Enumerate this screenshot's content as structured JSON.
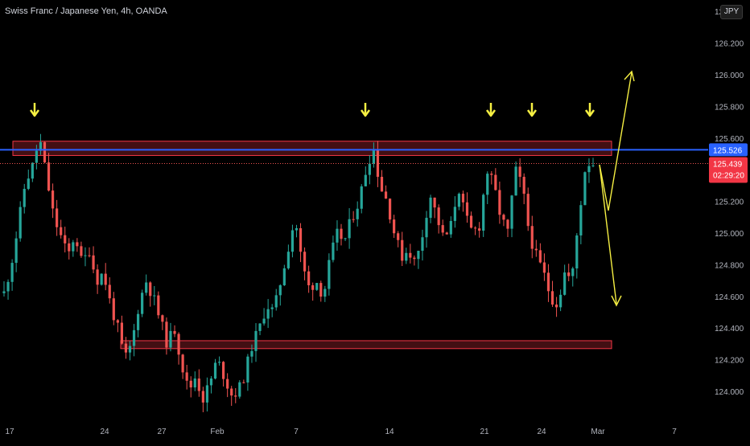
{
  "header": {
    "title": "Swiss Franc / Japanese Yen, 4h, OANDA",
    "currency_button": "JPY",
    "top_price_label": "12"
  },
  "colors": {
    "up": "#26a69a",
    "down": "#ef5350",
    "resistance_line": "#2962ff",
    "zone_border": "#f23645",
    "arrow": "#f5ef42",
    "current_price_bg": "#f23645"
  },
  "chart_data": {
    "type": "candlestick",
    "ylim": [
      123.85,
      126.42
    ],
    "y_ticks": [
      "126.200",
      "126.000",
      "125.800",
      "125.600",
      "125.200",
      "125.000",
      "124.800",
      "124.600",
      "124.400",
      "124.200",
      "124.000"
    ],
    "x_tick_labels": [
      "17",
      "24",
      "27",
      "Feb",
      "7",
      "14",
      "21",
      "24",
      "Mar",
      "7"
    ],
    "resistance_level": "125.526",
    "current_price": "125.439",
    "countdown": "02:29:20",
    "resistance_zone": [
      125.49,
      125.58
    ],
    "support_zone": [
      124.27,
      124.32
    ],
    "down_arrow_markers": 5,
    "projection_paths": [
      "up-breakout",
      "down-reversal"
    ],
    "price_path": [
      124.62,
      124.8,
      125.05,
      125.32,
      125.42,
      125.6,
      125.35,
      125.1,
      124.98,
      124.85,
      125.0,
      124.8,
      124.9,
      124.7,
      124.75,
      124.55,
      124.4,
      124.2,
      124.3,
      124.55,
      124.7,
      124.6,
      124.45,
      124.3,
      124.4,
      124.18,
      124.0,
      124.1,
      123.95,
      124.05,
      124.2,
      124.1,
      123.98,
      124.0,
      124.12,
      124.3,
      124.4,
      124.55,
      124.5,
      124.7,
      124.9,
      125.1,
      124.8,
      124.65,
      124.7,
      124.6,
      124.85,
      125.0,
      124.95,
      125.1,
      125.2,
      125.4,
      125.55,
      125.3,
      125.2,
      125.0,
      124.85,
      124.9,
      124.8,
      125.0,
      125.25,
      125.1,
      124.95,
      125.05,
      125.3,
      125.1,
      125.0,
      125.05,
      125.4,
      125.3,
      125.1,
      125.0,
      125.4,
      125.3,
      125.0,
      124.85,
      124.75,
      124.6,
      124.55,
      124.75,
      124.7,
      125.1,
      125.45,
      125.44
    ]
  }
}
